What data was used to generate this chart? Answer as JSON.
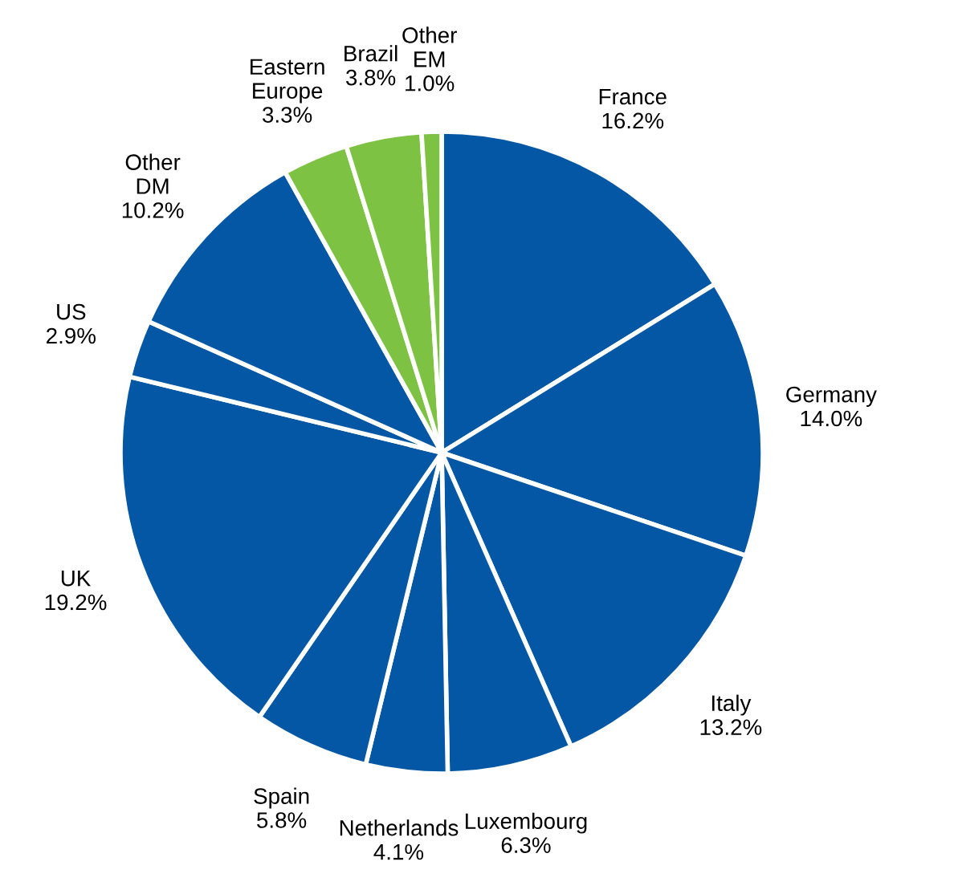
{
  "chart_data": {
    "type": "pie",
    "categories": [
      "France",
      "Germany",
      "Italy",
      "Luxembourg",
      "Netherlands",
      "Spain",
      "UK",
      "US",
      "Other DM",
      "Eastern Europe",
      "Brazil",
      "Other EM"
    ],
    "values": [
      16.2,
      14.0,
      13.2,
      6.3,
      4.1,
      5.8,
      19.2,
      2.9,
      10.2,
      3.3,
      3.8,
      1.0
    ],
    "value_labels": [
      "16.2%",
      "14.0%",
      "13.2%",
      "6.3%",
      "4.1%",
      "5.8%",
      "19.2%",
      "2.9%",
      "10.2%",
      "3.3%",
      "3.8%",
      "1.0%"
    ],
    "colors": [
      "#0457a4",
      "#0457a4",
      "#0457a4",
      "#0457a4",
      "#0457a4",
      "#0457a4",
      "#0457a4",
      "#0457a4",
      "#0457a4",
      "#7dc242",
      "#7dc242",
      "#7dc242"
    ]
  }
}
